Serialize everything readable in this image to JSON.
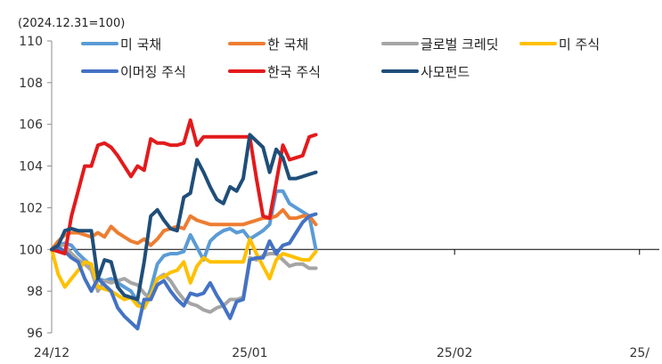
{
  "chart_data": {
    "type": "line",
    "annotation": "(2024.12.31=100)",
    "ylim": [
      96,
      110
    ],
    "yticks": [
      96,
      98,
      100,
      102,
      104,
      106,
      108,
      110
    ],
    "xlim": [
      0,
      92
    ],
    "xticks": [
      {
        "pos": 0,
        "label": "24/12"
      },
      {
        "pos": 30,
        "label": "25/01"
      },
      {
        "pos": 61,
        "label": "25/02"
      },
      {
        "pos": 89,
        "label": "25/"
      }
    ],
    "baseline": 100,
    "grid": false,
    "legend_position": "top",
    "series": [
      {
        "name": "미 국채",
        "color": "#5b9bd5",
        "values": [
          [
            0,
            100
          ],
          [
            1,
            100.2
          ],
          [
            2,
            100.3
          ],
          [
            3,
            100.2
          ],
          [
            4,
            99.8
          ],
          [
            5,
            99.5
          ],
          [
            6,
            99.2
          ],
          [
            7,
            98.6
          ],
          [
            8,
            98.5
          ],
          [
            9,
            98.6
          ],
          [
            10,
            98.4
          ],
          [
            11,
            98.2
          ],
          [
            12,
            98.0
          ],
          [
            13,
            97.5
          ],
          [
            14,
            97.2
          ],
          [
            15,
            98.1
          ],
          [
            16,
            99.3
          ],
          [
            17,
            99.7
          ],
          [
            18,
            99.8
          ],
          [
            19,
            99.8
          ],
          [
            20,
            99.9
          ],
          [
            21,
            100.7
          ],
          [
            22,
            100.1
          ],
          [
            23,
            99.5
          ],
          [
            24,
            100.4
          ],
          [
            25,
            100.7
          ],
          [
            26,
            100.9
          ],
          [
            27,
            101.0
          ],
          [
            28,
            100.8
          ],
          [
            29,
            100.9
          ],
          [
            30,
            100.5
          ],
          [
            31,
            100.7
          ],
          [
            32,
            100.9
          ],
          [
            33,
            101.2
          ],
          [
            34,
            102.8
          ],
          [
            35,
            102.8
          ],
          [
            36,
            102.2
          ],
          [
            37,
            102.0
          ],
          [
            38,
            101.8
          ],
          [
            39,
            101.6
          ],
          [
            40,
            100.0
          ]
        ]
      },
      {
        "name": "한 국채",
        "color": "#ed7d31",
        "values": [
          [
            0,
            100
          ],
          [
            1,
            100.4
          ],
          [
            2,
            100.7
          ],
          [
            3,
            100.8
          ],
          [
            4,
            100.8
          ],
          [
            5,
            100.7
          ],
          [
            6,
            100.6
          ],
          [
            7,
            100.8
          ],
          [
            8,
            100.6
          ],
          [
            9,
            101.1
          ],
          [
            10,
            100.8
          ],
          [
            11,
            100.6
          ],
          [
            12,
            100.4
          ],
          [
            13,
            100.3
          ],
          [
            14,
            100.5
          ],
          [
            15,
            100.2
          ],
          [
            16,
            100.5
          ],
          [
            17,
            100.9
          ],
          [
            18,
            101.0
          ],
          [
            19,
            101.1
          ],
          [
            20,
            101.0
          ],
          [
            21,
            101.6
          ],
          [
            22,
            101.4
          ],
          [
            23,
            101.3
          ],
          [
            24,
            101.2
          ],
          [
            25,
            101.2
          ],
          [
            26,
            101.2
          ],
          [
            27,
            101.2
          ],
          [
            28,
            101.2
          ],
          [
            29,
            101.2
          ],
          [
            30,
            101.3
          ],
          [
            31,
            101.4
          ],
          [
            32,
            101.5
          ],
          [
            33,
            101.5
          ],
          [
            34,
            101.6
          ],
          [
            35,
            101.9
          ],
          [
            36,
            101.5
          ],
          [
            37,
            101.5
          ],
          [
            38,
            101.6
          ],
          [
            39,
            101.6
          ],
          [
            40,
            101.2
          ]
        ]
      },
      {
        "name": "글로벌 크레딧",
        "color": "#a5a5a5",
        "values": [
          [
            0,
            100
          ],
          [
            1,
            100.2
          ],
          [
            2,
            100.2
          ],
          [
            3,
            99.8
          ],
          [
            4,
            99.5
          ],
          [
            5,
            99.3
          ],
          [
            6,
            99.0
          ],
          [
            7,
            98.0
          ],
          [
            8,
            98.5
          ],
          [
            9,
            98.4
          ],
          [
            10,
            98.5
          ],
          [
            11,
            98.6
          ],
          [
            12,
            98.4
          ],
          [
            13,
            98.3
          ],
          [
            14,
            97.9
          ],
          [
            15,
            97.6
          ],
          [
            16,
            98.6
          ],
          [
            17,
            98.8
          ],
          [
            18,
            98.5
          ],
          [
            19,
            98.0
          ],
          [
            20,
            97.6
          ],
          [
            21,
            97.4
          ],
          [
            22,
            97.3
          ],
          [
            23,
            97.1
          ],
          [
            24,
            97.0
          ],
          [
            25,
            97.2
          ],
          [
            26,
            97.3
          ],
          [
            27,
            97.6
          ],
          [
            28,
            97.6
          ],
          [
            29,
            97.7
          ],
          [
            30,
            99.6
          ],
          [
            31,
            99.5
          ],
          [
            32,
            99.7
          ],
          [
            33,
            99.8
          ],
          [
            34,
            99.8
          ],
          [
            35,
            99.5
          ],
          [
            36,
            99.2
          ],
          [
            37,
            99.3
          ],
          [
            38,
            99.3
          ],
          [
            39,
            99.1
          ],
          [
            40,
            99.1
          ]
        ]
      },
      {
        "name": "미 주식",
        "color": "#ffc000",
        "values": [
          [
            0,
            100
          ],
          [
            1,
            98.8
          ],
          [
            2,
            98.2
          ],
          [
            3,
            98.6
          ],
          [
            4,
            99.0
          ],
          [
            5,
            99.4
          ],
          [
            6,
            99.3
          ],
          [
            7,
            98.2
          ],
          [
            8,
            98.1
          ],
          [
            9,
            98.0
          ],
          [
            10,
            97.8
          ],
          [
            11,
            97.6
          ],
          [
            12,
            97.7
          ],
          [
            13,
            97.3
          ],
          [
            14,
            97.2
          ],
          [
            15,
            97.8
          ],
          [
            16,
            98.6
          ],
          [
            17,
            98.7
          ],
          [
            18,
            98.9
          ],
          [
            19,
            99.0
          ],
          [
            20,
            99.4
          ],
          [
            21,
            98.4
          ],
          [
            22,
            99.2
          ],
          [
            23,
            99.6
          ],
          [
            24,
            99.4
          ],
          [
            25,
            99.4
          ],
          [
            26,
            99.4
          ],
          [
            27,
            99.4
          ],
          [
            28,
            99.4
          ],
          [
            29,
            99.4
          ],
          [
            30,
            100.5
          ],
          [
            31,
            99.8
          ],
          [
            32,
            99.2
          ],
          [
            33,
            98.6
          ],
          [
            34,
            99.5
          ],
          [
            35,
            99.8
          ],
          [
            36,
            99.7
          ],
          [
            37,
            99.6
          ],
          [
            38,
            99.5
          ],
          [
            39,
            99.5
          ],
          [
            40,
            99.9
          ]
        ]
      },
      {
        "name": "이머징 주식",
        "color": "#4472c4",
        "values": [
          [
            0,
            100
          ],
          [
            1,
            100.1
          ],
          [
            2,
            99.9
          ],
          [
            3,
            99.6
          ],
          [
            4,
            99.4
          ],
          [
            5,
            98.6
          ],
          [
            6,
            98.0
          ],
          [
            7,
            98.6
          ],
          [
            8,
            98.3
          ],
          [
            9,
            98.0
          ],
          [
            10,
            97.2
          ],
          [
            11,
            96.8
          ],
          [
            12,
            96.5
          ],
          [
            13,
            96.2
          ],
          [
            14,
            97.6
          ],
          [
            15,
            97.6
          ],
          [
            16,
            98.3
          ],
          [
            17,
            98.5
          ],
          [
            18,
            98.0
          ],
          [
            19,
            97.6
          ],
          [
            20,
            97.3
          ],
          [
            21,
            97.9
          ],
          [
            22,
            97.8
          ],
          [
            23,
            97.9
          ],
          [
            24,
            98.4
          ],
          [
            25,
            97.8
          ],
          [
            26,
            97.3
          ],
          [
            27,
            96.7
          ],
          [
            28,
            97.5
          ],
          [
            29,
            97.6
          ],
          [
            30,
            99.5
          ],
          [
            31,
            99.6
          ],
          [
            32,
            99.6
          ],
          [
            33,
            100.4
          ],
          [
            34,
            99.8
          ],
          [
            35,
            100.2
          ],
          [
            36,
            100.3
          ],
          [
            37,
            100.8
          ],
          [
            38,
            101.3
          ],
          [
            39,
            101.6
          ],
          [
            40,
            101.7
          ]
        ]
      },
      {
        "name": "한국 주식",
        "color": "#e31a1c",
        "values": [
          [
            0,
            100
          ],
          [
            1,
            99.9
          ],
          [
            2,
            99.8
          ],
          [
            3,
            101.6
          ],
          [
            4,
            102.8
          ],
          [
            5,
            104.0
          ],
          [
            6,
            104.0
          ],
          [
            7,
            105.0
          ],
          [
            8,
            105.1
          ],
          [
            9,
            104.9
          ],
          [
            10,
            104.5
          ],
          [
            11,
            104.0
          ],
          [
            12,
            103.5
          ],
          [
            13,
            104.0
          ],
          [
            14,
            103.8
          ],
          [
            15,
            105.3
          ],
          [
            16,
            105.1
          ],
          [
            17,
            105.1
          ],
          [
            18,
            105.0
          ],
          [
            19,
            105.0
          ],
          [
            20,
            105.1
          ],
          [
            21,
            106.2
          ],
          [
            22,
            105.0
          ],
          [
            23,
            105.4
          ],
          [
            24,
            105.4
          ],
          [
            25,
            105.4
          ],
          [
            26,
            105.4
          ],
          [
            27,
            105.4
          ],
          [
            28,
            105.4
          ],
          [
            29,
            105.4
          ],
          [
            30,
            105.4
          ],
          [
            31,
            103.4
          ],
          [
            32,
            101.6
          ],
          [
            33,
            101.5
          ],
          [
            34,
            103.2
          ],
          [
            35,
            105.0
          ],
          [
            36,
            104.3
          ],
          [
            37,
            104.4
          ],
          [
            38,
            104.5
          ],
          [
            39,
            105.4
          ],
          [
            40,
            105.5
          ]
        ]
      },
      {
        "name": "사모펀드",
        "color": "#1f4e79",
        "values": [
          [
            0,
            100
          ],
          [
            1,
            100.2
          ],
          [
            2,
            100.9
          ],
          [
            3,
            101.0
          ],
          [
            4,
            100.9
          ],
          [
            5,
            100.9
          ],
          [
            6,
            100.9
          ],
          [
            7,
            98.6
          ],
          [
            8,
            99.5
          ],
          [
            9,
            99.4
          ],
          [
            10,
            98.2
          ],
          [
            11,
            97.8
          ],
          [
            12,
            97.7
          ],
          [
            13,
            97.6
          ],
          [
            14,
            99.4
          ],
          [
            15,
            101.6
          ],
          [
            16,
            101.9
          ],
          [
            17,
            101.4
          ],
          [
            18,
            101.0
          ],
          [
            19,
            100.9
          ],
          [
            20,
            102.5
          ],
          [
            21,
            102.7
          ],
          [
            22,
            104.3
          ],
          [
            23,
            103.7
          ],
          [
            24,
            103.0
          ],
          [
            25,
            102.4
          ],
          [
            26,
            102.2
          ],
          [
            27,
            103.0
          ],
          [
            28,
            102.8
          ],
          [
            29,
            103.4
          ],
          [
            30,
            105.5
          ],
          [
            31,
            105.2
          ],
          [
            32,
            104.9
          ],
          [
            33,
            103.7
          ],
          [
            34,
            104.8
          ],
          [
            35,
            104.4
          ],
          [
            36,
            103.4
          ],
          [
            37,
            103.4
          ],
          [
            38,
            103.5
          ],
          [
            39,
            103.6
          ],
          [
            40,
            103.7
          ]
        ]
      }
    ]
  }
}
